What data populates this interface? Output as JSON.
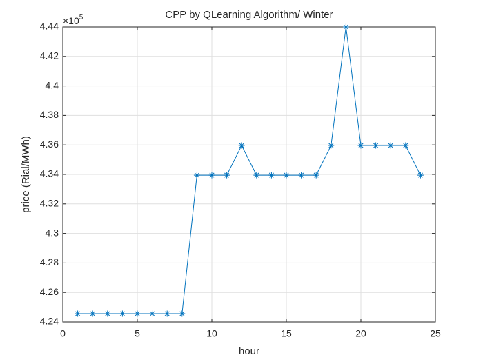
{
  "chart_data": {
    "type": "line",
    "title": "CPP by QLearning Algorithm/ Winter",
    "x_label": "hour",
    "y_label": "price (Rial/MWh)",
    "y_multiplier": {
      "base": "×10",
      "exponent": "5"
    },
    "x": [
      1,
      2,
      3,
      4,
      5,
      6,
      7,
      8,
      9,
      10,
      11,
      12,
      13,
      14,
      15,
      16,
      17,
      18,
      19,
      20,
      21,
      22,
      23,
      24
    ],
    "series": [
      {
        "name": "CPP",
        "color": "#0072bd",
        "values": [
          4.2456,
          4.2456,
          4.2456,
          4.2456,
          4.2456,
          4.2456,
          4.2456,
          4.2456,
          4.3395,
          4.3395,
          4.3395,
          4.3596,
          4.3395,
          4.3395,
          4.3395,
          4.3395,
          4.3395,
          4.3596,
          4.44,
          4.3596,
          4.3596,
          4.3596,
          4.3596,
          4.3395
        ]
      }
    ],
    "xlim": [
      0,
      25
    ],
    "xticks": [
      0,
      5,
      10,
      15,
      20,
      25
    ],
    "ylim": [
      4.24,
      4.44
    ],
    "yticks": [
      4.24,
      4.26,
      4.28,
      4.3,
      4.32,
      4.34,
      4.36,
      4.38,
      4.4,
      4.42,
      4.44
    ],
    "grid": true,
    "marker": "asterisk"
  }
}
